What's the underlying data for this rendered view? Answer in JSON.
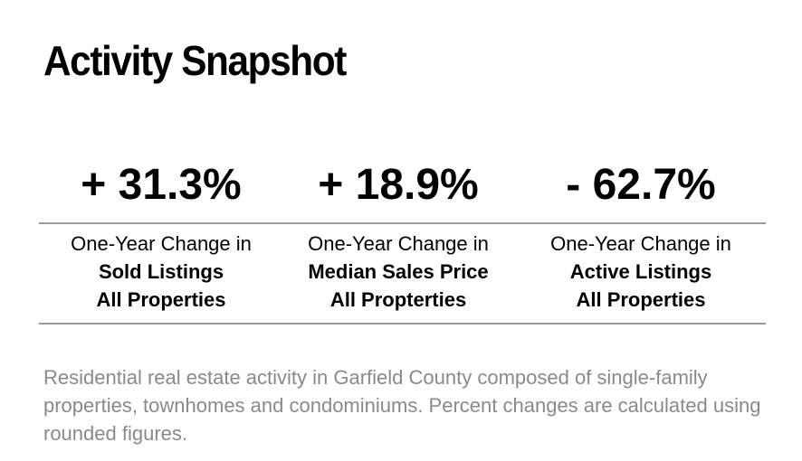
{
  "title": "Activity Snapshot",
  "stats": [
    {
      "value": "+ 31.3%",
      "line1": "One-Year Change in",
      "line2": "Sold Listings",
      "line3": "All Properties"
    },
    {
      "value": "+ 18.9%",
      "line1": "One-Year Change in",
      "line2": "Median Sales Price",
      "line3": "All Propterties"
    },
    {
      "value": "- 62.7%",
      "line1": "One-Year Change in",
      "line2": "Active Listings",
      "line3": "All Properties"
    }
  ],
  "footnote": "Residential real estate activity in Garfield County composed of single-family properties, townhomes and condominiums. Percent changes are calculated using rounded figures.",
  "colors": {
    "text": "#000000",
    "rule": "#9a9a9a",
    "footnote": "#8a8a8a"
  }
}
